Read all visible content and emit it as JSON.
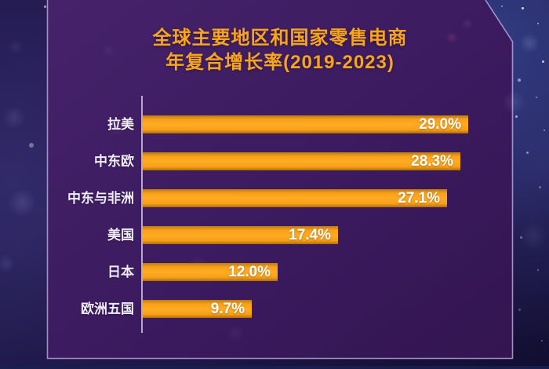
{
  "chart_data": {
    "type": "bar",
    "orientation": "horizontal",
    "title_lines": [
      "全球主要地区和国家零售电商",
      "年复合增长率(2019-2023)"
    ],
    "title": "全球主要地区和国家零售电商年复合增长率(2019-2023)",
    "categories": [
      "拉美",
      "中东欧",
      "中东与非洲",
      "美国",
      "日本",
      "欧洲五国"
    ],
    "values": [
      29.0,
      28.3,
      27.1,
      17.4,
      12.0,
      9.7
    ],
    "value_labels": [
      "29.0%",
      "28.3%",
      "27.1%",
      "17.4%",
      "12.0%",
      "9.7%"
    ],
    "xlim": [
      0,
      30
    ],
    "grid": "off",
    "legend": "none",
    "colors": {
      "bar": "#f7a019",
      "title_text": "#f8a51e",
      "category_text": "#efecf7",
      "value_text": "#ffffff",
      "panel_fill": "#3e1c63",
      "panel_edge": "#b9a5d8",
      "axis_line": "#cec0e8",
      "background": "#241b52"
    }
  }
}
